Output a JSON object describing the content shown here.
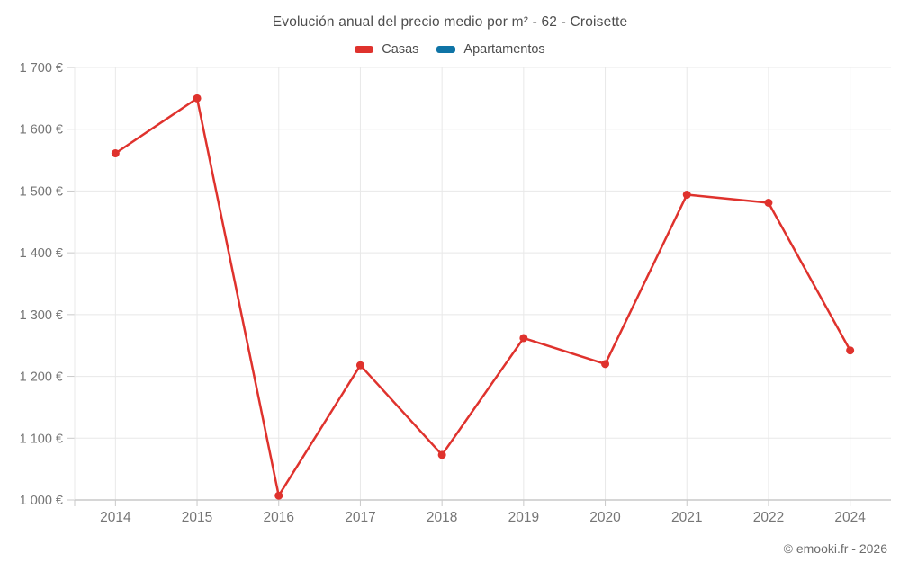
{
  "header": {
    "title": "Evolución anual del precio medio por m² - 62 - Croisette"
  },
  "legend": {
    "items": [
      {
        "label": "Casas",
        "color": "#df322d"
      },
      {
        "label": "Apartamentos",
        "color": "#0f74a6"
      }
    ]
  },
  "footer": {
    "credit": "© emooki.fr - 2026"
  },
  "chart_data": {
    "type": "line",
    "title": "Evolución anual del precio medio por m² - 62 - Croisette",
    "categories": [
      "2014",
      "2015",
      "2016",
      "2017",
      "2018",
      "2019",
      "2020",
      "2021",
      "2022",
      "2024"
    ],
    "series": [
      {
        "name": "Casas",
        "color": "#df322d",
        "values": [
          1561,
          1650,
          1007,
          1218,
          1073,
          1262,
          1220,
          1494,
          1481,
          1242
        ]
      },
      {
        "name": "Apartamentos",
        "color": "#0f74a6",
        "values": []
      }
    ],
    "xlabel": "",
    "ylabel": "",
    "ylim": [
      1000,
      1700
    ],
    "ytick_step": 100,
    "ytick_suffix": "€",
    "grid": true,
    "legend_position": "top",
    "colors": {
      "grid_line": "#e8e8e8",
      "axis_line": "#c9c9c9",
      "tick_label": "#757575"
    }
  }
}
